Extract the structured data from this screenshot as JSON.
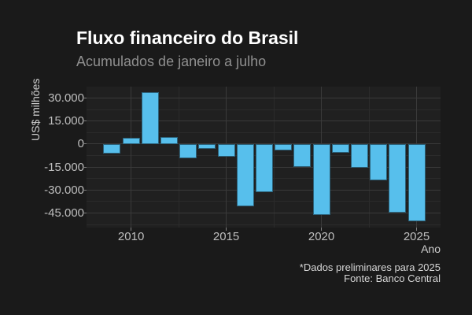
{
  "header": {
    "title": "Fluxo financeiro do Brasil",
    "subtitle": "Acumulados de janeiro a julho"
  },
  "footnote": {
    "line1": "*Dados preliminares para 2025",
    "line2": "Fonte: Banco Central"
  },
  "colors": {
    "background": "#1a1a1a",
    "plot_background": "#202020",
    "bar": "#57bfec",
    "grid_major": "#3a3a3a",
    "grid_minor": "#2b2b2b",
    "title_text": "#ffffff",
    "subtitle_text": "#8f8f8f",
    "axis_title_text": "#cfcfcf",
    "tick_label_text": "#bebebe",
    "footnote_text": "#d6d6d6",
    "tick_mark": "#7f7f7f"
  },
  "chart_data": {
    "type": "bar",
    "title": "Fluxo financeiro do Brasil",
    "subtitle": "Acumulados de janeiro a julho",
    "xlabel": "Ano",
    "ylabel": "US$ milhões",
    "x": [
      2009,
      2010,
      2011,
      2012,
      2013,
      2014,
      2015,
      2016,
      2017,
      2018,
      2019,
      2020,
      2021,
      2022,
      2023,
      2024,
      2025
    ],
    "values": [
      -6000,
      4000,
      34000,
      4500,
      -9500,
      -3000,
      -8000,
      -40500,
      -31500,
      -4000,
      -15000,
      -46500,
      -5500,
      -15500,
      -23500,
      -44500,
      -50500
    ],
    "x_ticks": [
      2010,
      2015,
      2020,
      2025
    ],
    "x_tick_labels": [
      "2010",
      "2015",
      "2020",
      "2025"
    ],
    "x_minor_ticks": [
      2012.5,
      2017.5,
      2022.5
    ],
    "y_ticks": [
      30000,
      15000,
      0,
      -15000,
      -30000,
      -45000
    ],
    "y_tick_labels": [
      "30.000",
      "15.000",
      "0",
      "-15.000",
      "-30.000",
      "-45.000"
    ],
    "y_minor_ticks": [
      22500,
      7500,
      -7500,
      -22500,
      -37500,
      -52500
    ],
    "xlim": [
      2007.66,
      2026.26
    ],
    "ylim": [
      -54500,
      37500
    ],
    "grid": true,
    "legend": false,
    "footnote": [
      "*Dados preliminares para 2025",
      "Fonte: Banco Central"
    ]
  }
}
